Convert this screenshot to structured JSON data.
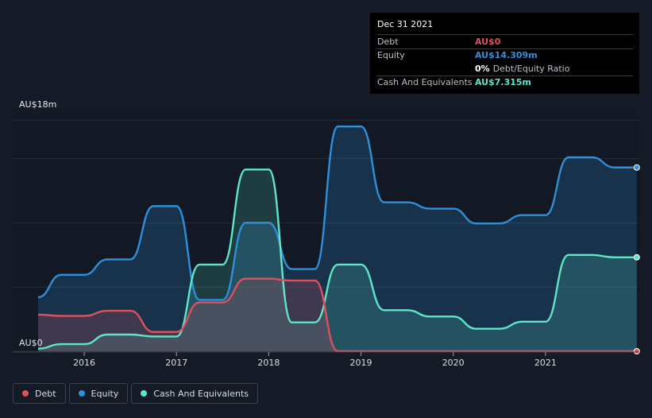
{
  "chart_data": {
    "type": "area",
    "y_top_label": "AU$18m",
    "y_bottom_label": "AU$0",
    "ylim": [
      0,
      18.5
    ],
    "xlim": [
      2015.5,
      2022.0
    ],
    "x_ticks": [
      {
        "value": 2016,
        "label": "2016"
      },
      {
        "value": 2017,
        "label": "2017"
      },
      {
        "value": 2018,
        "label": "2018"
      },
      {
        "value": 2019,
        "label": "2019"
      },
      {
        "value": 2020,
        "label": "2020"
      },
      {
        "value": 2021,
        "label": "2021"
      }
    ],
    "gridlines": [
      0,
      5,
      10,
      15,
      18
    ],
    "series": [
      {
        "name": "Debt",
        "color": "#e0505a",
        "fill": "rgba(224,80,90,0.20)",
        "points": [
          [
            2015.5,
            2.85
          ],
          [
            2015.75,
            2.75
          ],
          [
            2016.0,
            2.75
          ],
          [
            2016.25,
            3.15
          ],
          [
            2016.5,
            3.15
          ],
          [
            2016.75,
            1.5
          ],
          [
            2017.0,
            1.5
          ],
          [
            2017.25,
            3.8
          ],
          [
            2017.5,
            3.8
          ],
          [
            2017.75,
            5.65
          ],
          [
            2018.0,
            5.65
          ],
          [
            2018.25,
            5.5
          ],
          [
            2018.5,
            5.5
          ],
          [
            2018.75,
            0
          ],
          [
            2019.0,
            0
          ],
          [
            2021.99,
            0
          ]
        ]
      },
      {
        "name": "Equity",
        "color": "#2f8fdb",
        "fill": "rgba(47,143,219,0.22)",
        "points": [
          [
            2015.5,
            4.2
          ],
          [
            2015.75,
            5.95
          ],
          [
            2016.0,
            5.95
          ],
          [
            2016.25,
            7.15
          ],
          [
            2016.5,
            7.15
          ],
          [
            2016.75,
            11.3
          ],
          [
            2017.0,
            11.3
          ],
          [
            2017.25,
            4.0
          ],
          [
            2017.5,
            4.0
          ],
          [
            2017.75,
            10.0
          ],
          [
            2018.0,
            10.0
          ],
          [
            2018.25,
            6.4
          ],
          [
            2018.5,
            6.4
          ],
          [
            2018.75,
            17.5
          ],
          [
            2019.0,
            17.5
          ],
          [
            2019.25,
            11.6
          ],
          [
            2019.5,
            11.6
          ],
          [
            2019.75,
            11.1
          ],
          [
            2020.0,
            11.1
          ],
          [
            2020.25,
            9.95
          ],
          [
            2020.5,
            9.95
          ],
          [
            2020.75,
            10.6
          ],
          [
            2021.0,
            10.6
          ],
          [
            2021.25,
            15.1
          ],
          [
            2021.5,
            15.1
          ],
          [
            2021.75,
            14.309
          ],
          [
            2021.99,
            14.309
          ]
        ]
      },
      {
        "name": "Cash And Equivalents",
        "color": "#5fe5c7",
        "fill": "rgba(95,229,199,0.18)",
        "points": [
          [
            2015.5,
            0.2
          ],
          [
            2015.75,
            0.55
          ],
          [
            2016.0,
            0.55
          ],
          [
            2016.25,
            1.3
          ],
          [
            2016.5,
            1.3
          ],
          [
            2016.75,
            1.15
          ],
          [
            2017.0,
            1.15
          ],
          [
            2017.25,
            6.75
          ],
          [
            2017.5,
            6.75
          ],
          [
            2017.75,
            14.15
          ],
          [
            2018.0,
            14.15
          ],
          [
            2018.25,
            2.25
          ],
          [
            2018.5,
            2.25
          ],
          [
            2018.75,
            6.75
          ],
          [
            2019.0,
            6.75
          ],
          [
            2019.25,
            3.2
          ],
          [
            2019.5,
            3.2
          ],
          [
            2019.75,
            2.7
          ],
          [
            2020.0,
            2.7
          ],
          [
            2020.25,
            1.75
          ],
          [
            2020.5,
            1.75
          ],
          [
            2020.75,
            2.3
          ],
          [
            2021.0,
            2.3
          ],
          [
            2021.25,
            7.5
          ],
          [
            2021.5,
            7.5
          ],
          [
            2021.75,
            7.315
          ],
          [
            2021.99,
            7.315
          ]
        ]
      }
    ]
  },
  "tooltip": {
    "date": "Dec 31 2021",
    "rows": [
      {
        "label": "Debt",
        "value": "AU$0",
        "color": "#e0505a"
      },
      {
        "label": "Equity",
        "value": "AU$14.309m",
        "color": "#2f8fdb"
      },
      {
        "label": "",
        "value": "0%",
        "suffix": "Debt/Equity Ratio",
        "color": "#ffffff"
      },
      {
        "label": "Cash And Equivalents",
        "value": "AU$7.315m",
        "color": "#5fe5c7"
      }
    ]
  },
  "legend": [
    {
      "label": "Debt",
      "color": "#e0505a"
    },
    {
      "label": "Equity",
      "color": "#2f8fdb"
    },
    {
      "label": "Cash And Equivalents",
      "color": "#5fe5c7"
    }
  ]
}
